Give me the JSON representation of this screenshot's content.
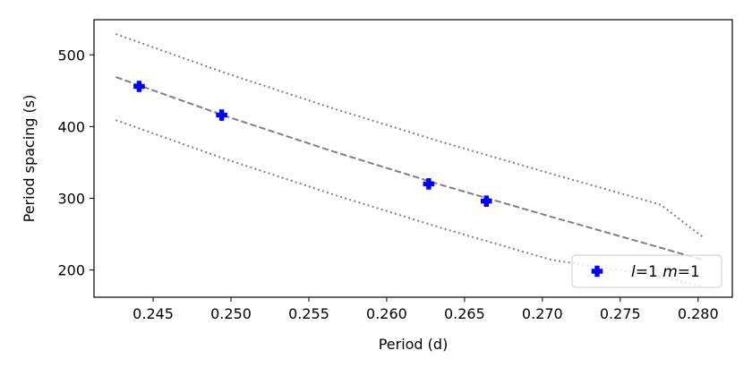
{
  "chart_data": {
    "type": "scatter",
    "title": "",
    "xlabel": "Period (d)",
    "ylabel": "Period spacing (s)",
    "xlim": [
      0.2412,
      0.2822
    ],
    "ylim": [
      162,
      549
    ],
    "xticks": [
      0.245,
      0.25,
      0.255,
      0.26,
      0.265,
      0.27,
      0.275,
      0.28
    ],
    "xtick_labels": [
      "0.245",
      "0.250",
      "0.255",
      "0.260",
      "0.265",
      "0.270",
      "0.275",
      "0.280"
    ],
    "yticks": [
      200,
      300,
      400,
      500
    ],
    "ytick_labels": [
      "200",
      "300",
      "400",
      "500"
    ],
    "grid": false,
    "legend_position": "bottom-right",
    "series": [
      {
        "name": "l=1 m=1",
        "legend": {
          "l_symbol": "l",
          "l_value": "=1 ",
          "m_symbol": "m",
          "m_value": "=1"
        },
        "kind": "scatter",
        "marker": "plus-filled",
        "color": "#0000ff",
        "x": [
          0.2441,
          0.2494,
          0.2627,
          0.2664
        ],
        "y": [
          456,
          416,
          320,
          296
        ]
      },
      {
        "kind": "line",
        "style": "dashed",
        "color": "#808080",
        "x": [
          0.2426,
          0.2496,
          0.2566,
          0.2636,
          0.2706,
          0.2776,
          0.2803
        ],
        "y": [
          469,
          415,
          365,
          318,
          274,
          231,
          214
        ]
      },
      {
        "kind": "line",
        "style": "dotted",
        "color": "#808080",
        "x": [
          0.2426,
          0.2496,
          0.2566,
          0.2636,
          0.2706,
          0.2776,
          0.2803
        ],
        "y": [
          529,
          475,
          425,
          378,
          334,
          291,
          246
        ]
      },
      {
        "kind": "line",
        "style": "dotted",
        "color": "#808080",
        "x": [
          0.2426,
          0.2496,
          0.2566,
          0.2636,
          0.2706,
          0.2776,
          0.2803
        ],
        "y": [
          409,
          355,
          305,
          258,
          214,
          191,
          177
        ]
      }
    ]
  }
}
